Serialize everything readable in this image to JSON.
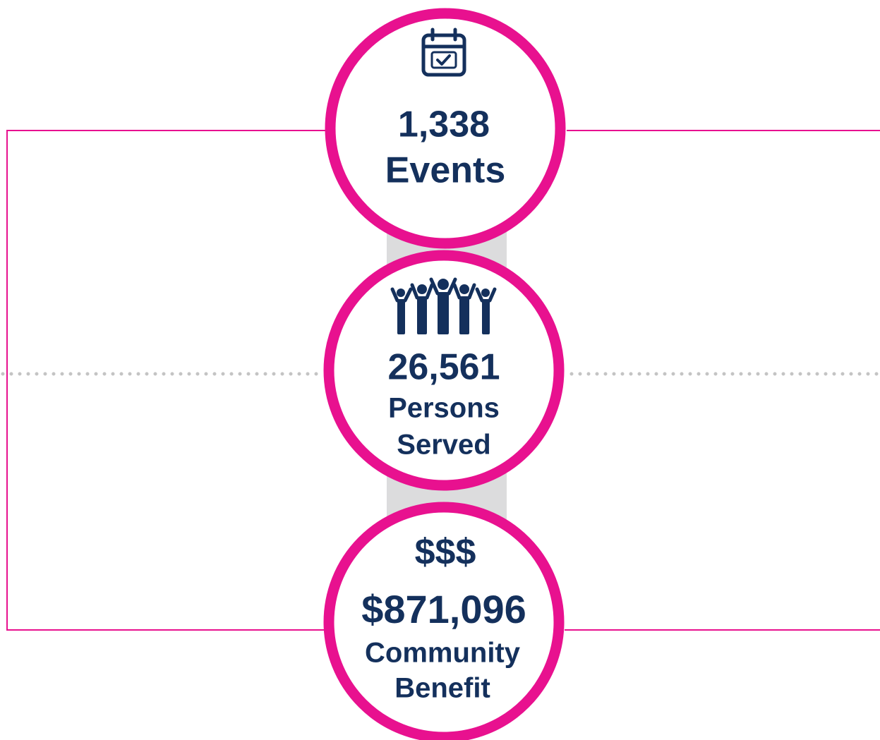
{
  "stats": [
    {
      "value": "1,338",
      "label_lines": [
        "Events"
      ]
    },
    {
      "value": "26,561",
      "label_lines": [
        "Persons",
        "Served"
      ]
    },
    {
      "icon_text": "$$$",
      "value": "$871,096",
      "label_lines": [
        "Community",
        "Benefit"
      ]
    }
  ]
}
